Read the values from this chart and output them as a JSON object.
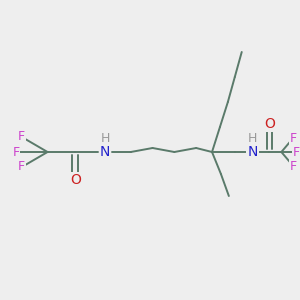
{
  "bg_color": "#eeeeee",
  "bond_color": "#5a7a6a",
  "N_color": "#2222cc",
  "O_color": "#cc2222",
  "F_color": "#cc44cc",
  "H_color": "#999999",
  "font_size": 10,
  "small_font_size": 9,
  "figsize": [
    3.0,
    3.0
  ],
  "dpi": 100,
  "bond_lw": 1.4,
  "xlim": [
    0,
    300
  ],
  "ylim": [
    0,
    300
  ]
}
